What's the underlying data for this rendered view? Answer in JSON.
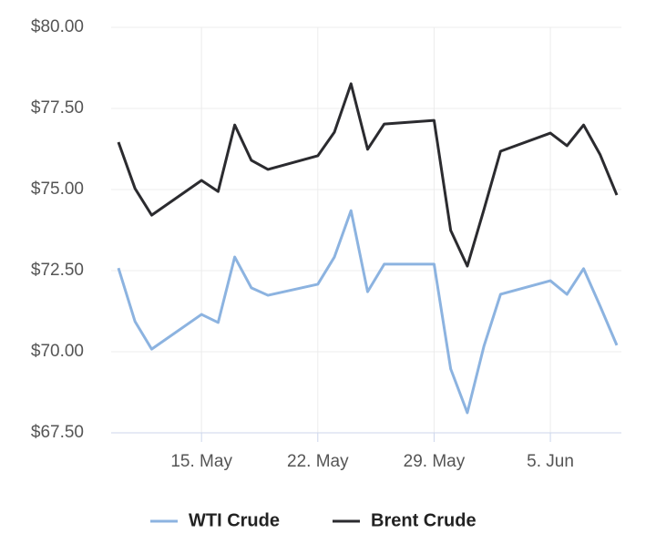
{
  "chart_data": {
    "type": "line",
    "x": [
      "10. May",
      "11. May",
      "12. May",
      "15. May",
      "16. May",
      "17. May",
      "18. May",
      "19. May",
      "22. May",
      "23. May",
      "24. May",
      "25. May",
      "26. May",
      "29. May",
      "30. May",
      "31. May",
      "1. Jun",
      "2. Jun",
      "5. Jun",
      "6. Jun",
      "7. Jun",
      "8. Jun",
      "9. Jun"
    ],
    "series": [
      {
        "name": "WTI Crude",
        "color": "#8cb3e0",
        "values": [
          72.58,
          70.93,
          70.08,
          71.15,
          70.9,
          72.92,
          71.97,
          71.74,
          72.08,
          72.92,
          74.35,
          71.85,
          72.7,
          72.7,
          69.47,
          68.12,
          70.17,
          71.77,
          72.19,
          71.77,
          72.56,
          71.4,
          70.2
        ]
      },
      {
        "name": "Brent Crude",
        "color": "#2b2b2f",
        "values": [
          76.46,
          75.03,
          74.21,
          75.28,
          74.94,
          76.99,
          75.9,
          75.62,
          76.04,
          76.77,
          78.26,
          76.24,
          77.02,
          77.13,
          73.74,
          72.64,
          74.38,
          76.18,
          76.74,
          76.35,
          76.99,
          76.07,
          74.83
        ]
      }
    ],
    "xlim": [
      "10. May",
      "9. Jun"
    ],
    "xticks": [
      "15. May",
      "22. May",
      "29. May",
      "5. Jun"
    ],
    "ylim": [
      67.5,
      80
    ],
    "yticks": [
      {
        "value": 67.5,
        "label": "$67.50"
      },
      {
        "value": 70,
        "label": "$70.00"
      },
      {
        "value": 72.5,
        "label": "$72.50"
      },
      {
        "value": 75,
        "label": "$75.00"
      },
      {
        "value": 77.5,
        "label": "$77.50"
      },
      {
        "value": 80,
        "label": "$80.00"
      }
    ],
    "grid": true
  }
}
